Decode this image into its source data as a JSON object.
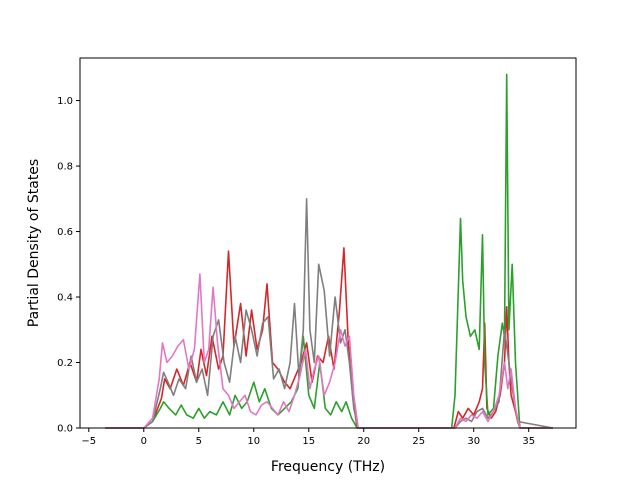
{
  "chart_data": {
    "type": "line",
    "xlabel": "Frequency (THz)",
    "ylabel": "Partial Density of States",
    "xlim": [
      -5.8,
      39.3
    ],
    "ylim": [
      0,
      1.13
    ],
    "xticks": [
      -5,
      0,
      5,
      10,
      15,
      20,
      25,
      30,
      35
    ],
    "yticks": [
      0.0,
      0.2,
      0.4,
      0.6,
      0.8,
      1.0
    ],
    "xtick_labels": [
      "−5",
      "0",
      "5",
      "10",
      "15",
      "20",
      "25",
      "30",
      "35"
    ],
    "ytick_labels": [
      "0.0",
      "0.2",
      "0.4",
      "0.6",
      "0.8",
      "1.0"
    ],
    "grid": false,
    "series": [
      {
        "color": "#d62728",
        "x": [
          -3.5,
          0,
          0.8,
          1.6,
          1.9,
          2.4,
          3.0,
          3.6,
          4.2,
          4.8,
          5.2,
          5.7,
          6.2,
          6.8,
          7.2,
          7.7,
          8.2,
          8.8,
          9.3,
          9.8,
          10.3,
          10.8,
          11.2,
          11.7,
          12.2,
          12.8,
          13.3,
          13.8,
          14.3,
          14.8,
          15.3,
          15.8,
          16.3,
          16.8,
          17.3,
          17.8,
          18.2,
          18.6,
          19.0,
          19.4,
          28.2,
          28.6,
          29.0,
          29.5,
          30.0,
          30.5,
          30.8,
          31.0,
          31.2,
          31.6,
          32.0,
          32.4,
          32.8,
          33.0,
          33.2,
          33.4,
          33.8,
          34.0,
          34.2,
          37.2
        ],
        "y": [
          0,
          0,
          0.02,
          0.09,
          0.15,
          0.12,
          0.18,
          0.13,
          0.2,
          0.14,
          0.24,
          0.16,
          0.28,
          0.18,
          0.22,
          0.54,
          0.25,
          0.38,
          0.22,
          0.36,
          0.24,
          0.3,
          0.44,
          0.2,
          0.18,
          0.14,
          0.12,
          0.16,
          0.2,
          0.26,
          0.14,
          0.22,
          0.2,
          0.28,
          0.18,
          0.36,
          0.55,
          0.26,
          0.1,
          0.0,
          0,
          0.05,
          0.03,
          0.06,
          0.04,
          0.08,
          0.12,
          0.32,
          0.06,
          0.03,
          0.05,
          0.1,
          0.2,
          0.37,
          0.2,
          0.1,
          0.05,
          0.02,
          0,
          0
        ]
      },
      {
        "color": "#2ca02c",
        "x": [
          -3.5,
          0,
          0.8,
          1.5,
          1.8,
          2.3,
          2.9,
          3.4,
          3.9,
          4.5,
          5.0,
          5.5,
          6.0,
          6.6,
          7.2,
          7.8,
          8.3,
          8.9,
          9.4,
          10.0,
          10.5,
          11.0,
          11.6,
          12.2,
          12.8,
          13.4,
          14.0,
          14.5,
          15.0,
          15.5,
          16.0,
          16.5,
          17.0,
          17.5,
          18.0,
          18.4,
          18.9,
          19.4,
          28.0,
          28.3,
          28.6,
          28.8,
          29.0,
          29.3,
          29.7,
          30.1,
          30.5,
          30.8,
          31.0,
          31.3,
          31.8,
          32.2,
          32.6,
          32.8,
          33.0,
          33.2,
          33.5,
          33.8,
          34.2,
          37.2
        ],
        "y": [
          0,
          0,
          0.02,
          0.06,
          0.08,
          0.06,
          0.04,
          0.07,
          0.04,
          0.03,
          0.06,
          0.03,
          0.05,
          0.04,
          0.08,
          0.04,
          0.1,
          0.06,
          0.08,
          0.14,
          0.08,
          0.12,
          0.06,
          0.04,
          0.06,
          0.08,
          0.12,
          0.28,
          0.1,
          0.06,
          0.2,
          0.06,
          0.04,
          0.08,
          0.05,
          0.08,
          0.03,
          0.0,
          0,
          0.1,
          0.42,
          0.64,
          0.45,
          0.34,
          0.28,
          0.3,
          0.24,
          0.59,
          0.2,
          0.04,
          0.06,
          0.22,
          0.32,
          0.28,
          1.08,
          0.3,
          0.5,
          0.2,
          0,
          0
        ]
      },
      {
        "color": "#7f7f7f",
        "x": [
          -3.5,
          0,
          0.8,
          1.5,
          1.8,
          2.2,
          2.7,
          3.2,
          3.8,
          4.3,
          4.8,
          5.3,
          5.8,
          6.3,
          6.8,
          7.3,
          7.8,
          8.3,
          8.8,
          9.3,
          9.8,
          10.3,
          10.8,
          11.3,
          11.8,
          12.3,
          12.8,
          13.3,
          13.7,
          14.1,
          14.5,
          14.8,
          15.1,
          15.5,
          15.9,
          16.4,
          16.9,
          17.4,
          17.9,
          18.3,
          18.7,
          19.1,
          19.5,
          28.3,
          28.8,
          29.3,
          29.8,
          30.3,
          30.8,
          31.3,
          31.8,
          32.3,
          32.8,
          33.2,
          33.6,
          34.0,
          37.2
        ],
        "y": [
          0,
          0,
          0.02,
          0.12,
          0.17,
          0.14,
          0.1,
          0.15,
          0.12,
          0.22,
          0.14,
          0.18,
          0.1,
          0.28,
          0.33,
          0.2,
          0.14,
          0.28,
          0.2,
          0.36,
          0.3,
          0.22,
          0.32,
          0.34,
          0.15,
          0.18,
          0.12,
          0.2,
          0.38,
          0.16,
          0.3,
          0.7,
          0.3,
          0.2,
          0.5,
          0.42,
          0.22,
          0.4,
          0.26,
          0.3,
          0.2,
          0.06,
          0.0,
          0,
          0.02,
          0.03,
          0.02,
          0.05,
          0.06,
          0.03,
          0.05,
          0.08,
          0.3,
          0.2,
          0.1,
          0.02,
          0
        ]
      },
      {
        "color": "#e377c2",
        "x": [
          -3.5,
          0,
          0.8,
          1.4,
          1.7,
          2.1,
          2.6,
          3.1,
          3.6,
          4.1,
          4.6,
          5.1,
          5.5,
          5.9,
          6.3,
          6.7,
          7.2,
          7.7,
          8.2,
          8.7,
          9.2,
          9.7,
          10.2,
          10.7,
          11.2,
          11.7,
          12.2,
          12.7,
          13.2,
          13.7,
          14.2,
          14.7,
          15.1,
          15.5,
          15.9,
          16.4,
          16.9,
          17.4,
          17.9,
          18.3,
          18.7,
          19.1,
          19.5,
          28.3,
          28.8,
          29.3,
          29.8,
          30.3,
          30.8,
          31.3,
          31.8,
          32.3,
          32.8,
          33.1,
          33.4,
          33.8,
          34.2,
          37.2
        ],
        "y": [
          0,
          0,
          0.03,
          0.15,
          0.26,
          0.2,
          0.22,
          0.25,
          0.27,
          0.18,
          0.24,
          0.47,
          0.2,
          0.24,
          0.43,
          0.26,
          0.12,
          0.1,
          0.06,
          0.08,
          0.1,
          0.05,
          0.04,
          0.07,
          0.08,
          0.06,
          0.04,
          0.08,
          0.05,
          0.1,
          0.16,
          0.24,
          0.12,
          0.18,
          0.22,
          0.1,
          0.14,
          0.2,
          0.3,
          0.25,
          0.28,
          0.1,
          0.0,
          0,
          0.03,
          0.02,
          0.04,
          0.03,
          0.05,
          0.02,
          0.05,
          0.1,
          0.2,
          0.12,
          0.18,
          0.06,
          0,
          0
        ]
      }
    ]
  }
}
